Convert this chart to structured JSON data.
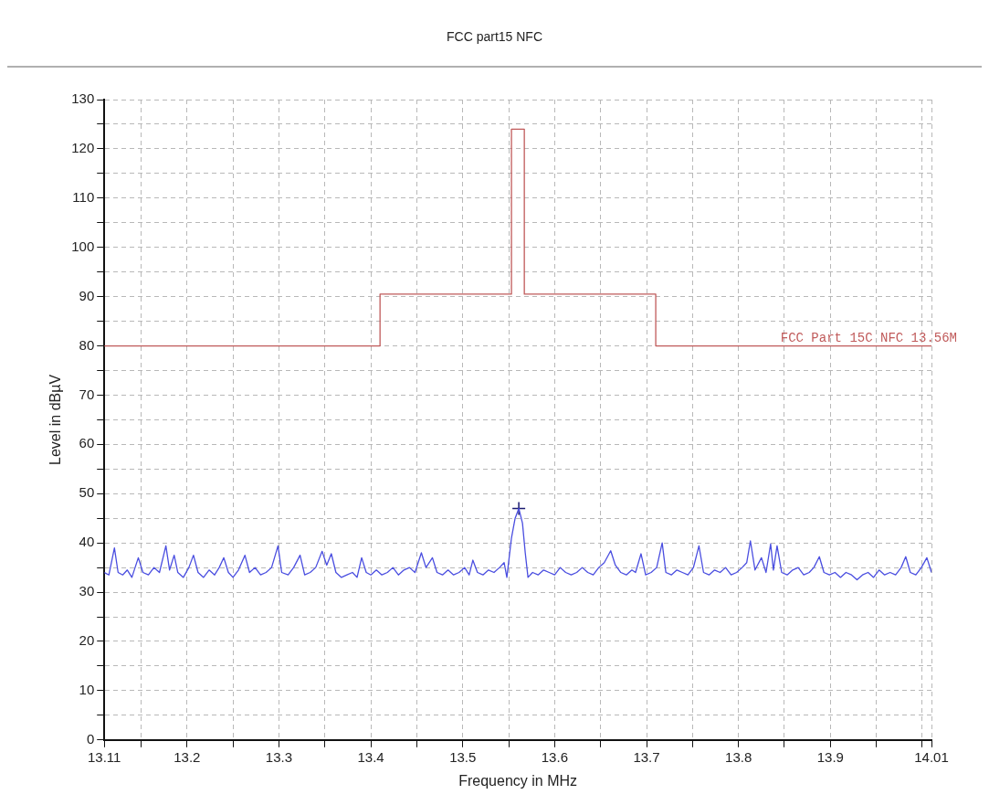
{
  "chart_data": {
    "type": "line",
    "title": "FCC part15 NFC",
    "xlabel": "Frequency in MHz",
    "ylabel": "Level in dBµV",
    "xlim": [
      13.11,
      14.01
    ],
    "xticks": [
      13.11,
      {
        "value": 13.15,
        "label": null
      },
      13.2,
      {
        "value": 13.25,
        "label": null
      },
      13.3,
      {
        "value": 13.35,
        "label": null
      },
      13.4,
      {
        "value": 13.45,
        "label": null
      },
      13.5,
      {
        "value": 13.55,
        "label": null
      },
      13.6,
      {
        "value": 13.65,
        "label": null
      },
      13.7,
      {
        "value": 13.75,
        "label": null
      },
      13.8,
      {
        "value": 13.85,
        "label": null
      },
      13.9,
      {
        "value": 13.95,
        "label": null
      },
      {
        "value": 14.0,
        "label": null
      },
      14.01
    ],
    "ylim": [
      0,
      130
    ],
    "yticks": [
      0,
      {
        "value": 5,
        "label": null
      },
      10,
      {
        "value": 15,
        "label": null
      },
      20,
      {
        "value": 25,
        "label": null
      },
      30,
      {
        "value": 35,
        "label": null
      },
      40,
      {
        "value": 45,
        "label": null
      },
      50,
      {
        "value": 55,
        "label": null
      },
      60,
      {
        "value": 65,
        "label": null
      },
      70,
      {
        "value": 75,
        "label": null
      },
      80,
      {
        "value": 85,
        "label": null
      },
      90,
      {
        "value": 95,
        "label": null
      },
      100,
      {
        "value": 105,
        "label": null
      },
      110,
      {
        "value": 115,
        "label": null
      },
      120,
      {
        "value": 125,
        "label": null
      },
      130
    ],
    "grid": true,
    "series": [
      {
        "name": "FCC Part 15C NFC 13.56M",
        "color": "#c05a5a",
        "marker": "none",
        "x": [
          13.11,
          13.41,
          13.41,
          13.553,
          13.553,
          13.567,
          13.567,
          13.71,
          13.71,
          14.01
        ],
        "values": [
          80,
          80,
          90.5,
          90.5,
          124,
          124,
          90.5,
          90.5,
          80,
          80
        ]
      },
      {
        "color": "#4a4ee0",
        "marker": "none",
        "x": [
          13.11,
          13.115,
          13.121,
          13.125,
          13.13,
          13.135,
          13.14,
          13.147,
          13.152,
          13.158,
          13.164,
          13.17,
          13.177,
          13.181,
          13.186,
          13.19,
          13.196,
          13.202,
          13.207,
          13.212,
          13.218,
          13.224,
          13.23,
          13.235,
          13.24,
          13.245,
          13.25,
          13.256,
          13.263,
          13.268,
          13.274,
          13.28,
          13.286,
          13.292,
          13.299,
          13.303,
          13.31,
          13.316,
          13.323,
          13.328,
          13.334,
          13.34,
          13.347,
          13.352,
          13.357,
          13.362,
          13.368,
          13.374,
          13.38,
          13.385,
          13.39,
          13.395,
          13.4,
          13.406,
          13.412,
          13.418,
          13.424,
          13.43,
          13.436,
          13.442,
          13.448,
          13.455,
          13.46,
          13.467,
          13.472,
          13.478,
          13.484,
          13.49,
          13.496,
          13.502,
          13.507,
          13.511,
          13.516,
          13.522,
          13.528,
          13.534,
          13.54,
          13.545,
          13.548,
          13.553,
          13.557,
          13.561,
          13.565,
          13.568,
          13.571,
          13.576,
          13.582,
          13.588,
          13.594,
          13.6,
          13.606,
          13.612,
          13.618,
          13.624,
          13.63,
          13.636,
          13.642,
          13.648,
          13.654,
          13.661,
          13.666,
          13.672,
          13.678,
          13.684,
          13.688,
          13.694,
          13.699,
          13.705,
          13.711,
          13.717,
          13.721,
          13.727,
          13.733,
          13.739,
          13.745,
          13.751,
          13.757,
          13.762,
          13.768,
          13.774,
          13.78,
          13.786,
          13.792,
          13.798,
          13.804,
          13.809,
          13.813,
          13.818,
          13.825,
          13.83,
          13.835,
          13.838,
          13.842,
          13.847,
          13.853,
          13.859,
          13.865,
          13.871,
          13.877,
          13.882,
          13.888,
          13.893,
          13.899,
          13.905,
          13.911,
          13.917,
          13.923,
          13.929,
          13.935,
          13.941,
          13.947,
          13.953,
          13.959,
          13.965,
          13.971,
          13.977,
          13.982,
          13.987,
          13.993,
          13.999,
          14.005,
          14.01
        ],
        "values": [
          34,
          33.5,
          39,
          34,
          33.5,
          34.5,
          33,
          37,
          34,
          33.5,
          35,
          34,
          39.4,
          34.5,
          37.5,
          34,
          33,
          35,
          37.5,
          34,
          33,
          34.5,
          33.5,
          35,
          37,
          34,
          33,
          34.5,
          37.5,
          34,
          35,
          33.5,
          34,
          35,
          39.4,
          34,
          33.5,
          35,
          37.5,
          33.5,
          34,
          35,
          38.3,
          35.5,
          37.8,
          34,
          33,
          33.5,
          34,
          33,
          37,
          34,
          33.5,
          34.5,
          33.5,
          34,
          35,
          33.5,
          34.5,
          35,
          34,
          38,
          35,
          37,
          34,
          33.5,
          34.5,
          33.5,
          34,
          35,
          33.5,
          36.5,
          34,
          33.5,
          34.5,
          34,
          35,
          36,
          33,
          41,
          45,
          47,
          44,
          38,
          33,
          34,
          33.5,
          34.5,
          34,
          33.5,
          35,
          34,
          33.5,
          34,
          35,
          34,
          33.5,
          35,
          36,
          38.4,
          35.5,
          34,
          33.5,
          34.5,
          34,
          37.8,
          33.5,
          34,
          35,
          40,
          34,
          33.5,
          34.5,
          34,
          33.5,
          35,
          39.4,
          34,
          33.5,
          34.5,
          34,
          35,
          33.5,
          34,
          35,
          36,
          40.4,
          34.5,
          37,
          34,
          39.8,
          34.5,
          39.4,
          34,
          33.5,
          34.5,
          35,
          33.5,
          34,
          35,
          37.2,
          34,
          33.5,
          34,
          33,
          34,
          33.5,
          32.5,
          33.5,
          34,
          33,
          34.5,
          33.5,
          34,
          33.5,
          35,
          37.2,
          34,
          33.5,
          35,
          37,
          34
        ]
      },
      {
        "type": "scatter",
        "color": "#1a1a70",
        "marker": "cross",
        "x": [
          13.561
        ],
        "values": [
          47
        ]
      }
    ]
  }
}
